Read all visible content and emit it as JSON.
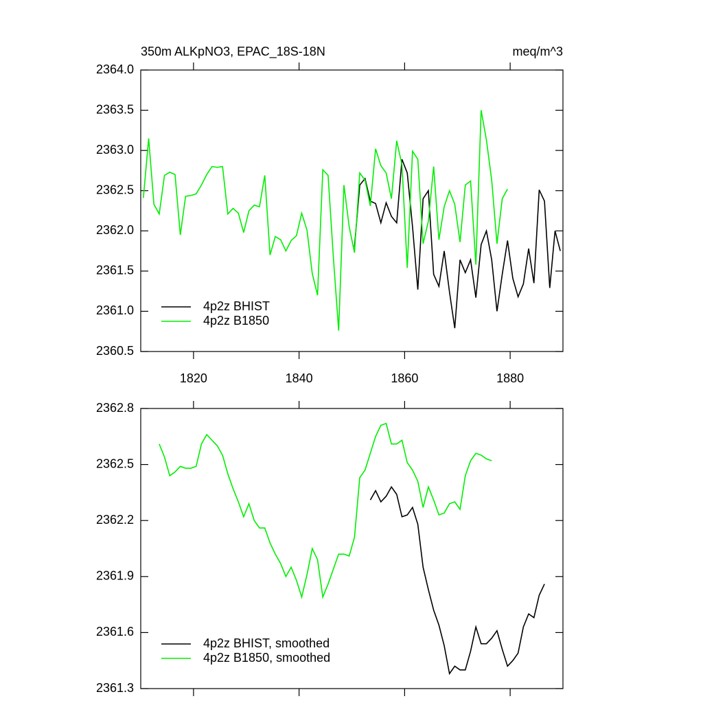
{
  "chart_data": [
    {
      "type": "line",
      "title": "350m ALKpNO3, EPAC_18S-18N",
      "units": "meq/m^3",
      "xlim": [
        1810,
        1890
      ],
      "xticks": [
        1820,
        1840,
        1860,
        1880
      ],
      "ylim": [
        2360.5,
        2364.0
      ],
      "yticks": [
        {
          "value": 2360.5,
          "label": "2360.5"
        },
        {
          "value": 2361.0,
          "label": "2361.0"
        },
        {
          "value": 2361.5,
          "label": "2361.5"
        },
        {
          "value": 2362.0,
          "label": "2362.0"
        },
        {
          "value": 2362.5,
          "label": "2362.5"
        },
        {
          "value": 2363.0,
          "label": "2363.0"
        },
        {
          "value": 2363.5,
          "label": "2363.5"
        },
        {
          "value": 2364.0,
          "label": "2364.0"
        }
      ],
      "legend": "lower left",
      "series": [
        {
          "name": "4p2z BHIST",
          "color": "#000000",
          "x": [
            1850.5,
            1851.5,
            1852.5,
            1853.5,
            1854.5,
            1855.5,
            1856.5,
            1857.5,
            1858.5,
            1859.5,
            1860.5,
            1861.5,
            1862.5,
            1863.5,
            1864.5,
            1865.5,
            1866.5,
            1867.5,
            1868.5,
            1869.5,
            1870.5,
            1871.5,
            1872.5,
            1873.5,
            1874.5,
            1875.5,
            1876.5,
            1877.5,
            1878.5,
            1879.5,
            1880.5,
            1881.5,
            1882.5,
            1883.5,
            1884.5,
            1885.5,
            1886.5,
            1887.5,
            1888.5,
            1889.5
          ],
          "values": [
            2361.8,
            2362.57,
            2362.65,
            2362.37,
            2362.34,
            2362.1,
            2362.35,
            2362.18,
            2362.1,
            2362.89,
            2362.72,
            2362.05,
            2361.27,
            2362.4,
            2362.5,
            2361.46,
            2361.31,
            2361.75,
            2361.24,
            2360.79,
            2361.64,
            2361.48,
            2361.64,
            2361.17,
            2361.83,
            2362.0,
            2361.64,
            2361.0,
            2361.46,
            2361.88,
            2361.41,
            2361.18,
            2361.34,
            2361.78,
            2361.35,
            2362.51,
            2362.37,
            2361.29,
            2362.0,
            2361.75
          ]
        },
        {
          "name": "4p2z B1850",
          "color": "#00ee00",
          "x": [
            1810.5,
            1811.5,
            1812.5,
            1813.5,
            1814.5,
            1815.5,
            1816.5,
            1817.5,
            1818.5,
            1819.5,
            1820.5,
            1821.5,
            1822.5,
            1823.5,
            1824.5,
            1825.5,
            1826.5,
            1827.5,
            1828.5,
            1829.5,
            1830.5,
            1831.5,
            1832.5,
            1833.5,
            1834.5,
            1835.5,
            1836.5,
            1837.5,
            1838.5,
            1839.5,
            1840.5,
            1841.5,
            1842.5,
            1843.5,
            1844.5,
            1845.5,
            1846.5,
            1847.5,
            1848.5,
            1849.5,
            1850.5,
            1851.5,
            1852.5,
            1853.5,
            1854.5,
            1855.5,
            1856.5,
            1857.5,
            1858.5,
            1859.5,
            1860.5,
            1861.5,
            1862.5,
            1863.5,
            1864.5,
            1865.5,
            1866.5,
            1867.5,
            1868.5,
            1869.5,
            1870.5,
            1871.5,
            1872.5,
            1873.5,
            1874.5,
            1875.5,
            1876.5,
            1877.5,
            1878.5,
            1879.5
          ],
          "values": [
            2362.41,
            2363.15,
            2362.33,
            2362.21,
            2362.69,
            2362.73,
            2362.7,
            2361.95,
            2362.43,
            2362.44,
            2362.46,
            2362.57,
            2362.7,
            2362.8,
            2362.79,
            2362.8,
            2362.21,
            2362.28,
            2362.22,
            2361.98,
            2362.25,
            2362.32,
            2362.3,
            2362.69,
            2361.7,
            2361.93,
            2361.89,
            2361.75,
            2361.88,
            2361.94,
            2362.22,
            2362.01,
            2361.47,
            2361.2,
            2362.76,
            2362.69,
            2361.67,
            2360.76,
            2362.57,
            2362.05,
            2361.73,
            2362.72,
            2362.63,
            2362.31,
            2363.02,
            2362.81,
            2362.72,
            2362.4,
            2363.12,
            2362.82,
            2361.54,
            2362.99,
            2362.89,
            2361.84,
            2362.12,
            2362.8,
            2361.89,
            2362.3,
            2362.5,
            2362.33,
            2361.86,
            2362.57,
            2362.62,
            2361.58,
            2363.5,
            2363.13,
            2362.63,
            2361.84,
            2362.4,
            2362.52
          ]
        }
      ]
    },
    {
      "type": "line",
      "xlim": [
        1810,
        1890
      ],
      "xticks": [
        1820,
        1840,
        1860,
        1880
      ],
      "ylim": [
        2361.3,
        2362.8
      ],
      "yticks": [
        {
          "value": 2361.3,
          "label": "2361.3"
        },
        {
          "value": 2361.6,
          "label": "2361.6"
        },
        {
          "value": 2361.9,
          "label": "2361.9"
        },
        {
          "value": 2362.2,
          "label": "2362.2"
        },
        {
          "value": 2362.5,
          "label": "2362.5"
        },
        {
          "value": 2362.8,
          "label": "2362.8"
        }
      ],
      "legend": "lower left",
      "series": [
        {
          "name": "4p2z BHIST, smoothed",
          "color": "#000000",
          "x": [
            1853.5,
            1854.5,
            1855.5,
            1856.5,
            1857.5,
            1858.5,
            1859.5,
            1860.5,
            1861.5,
            1862.5,
            1863.5,
            1864.5,
            1865.5,
            1866.5,
            1867.5,
            1868.5,
            1869.5,
            1870.5,
            1871.5,
            1872.5,
            1873.5,
            1874.5,
            1875.5,
            1876.5,
            1877.5,
            1878.5,
            1879.5,
            1880.5,
            1881.5,
            1882.5,
            1883.5,
            1884.5,
            1885.5,
            1886.5
          ],
          "values": [
            2362.31,
            2362.36,
            2362.3,
            2362.33,
            2362.38,
            2362.34,
            2362.22,
            2362.23,
            2362.27,
            2362.18,
            2361.95,
            2361.83,
            2361.72,
            2361.64,
            2361.53,
            2361.38,
            2361.42,
            2361.4,
            2361.4,
            2361.5,
            2361.63,
            2361.54,
            2361.54,
            2361.57,
            2361.61,
            2361.51,
            2361.42,
            2361.45,
            2361.49,
            2361.63,
            2361.7,
            2361.68,
            2361.8,
            2361.86
          ]
        },
        {
          "name": "4p2z B1850, smoothed",
          "color": "#00ee00",
          "x": [
            1813.5,
            1814.5,
            1815.5,
            1816.5,
            1817.5,
            1818.5,
            1819.5,
            1820.5,
            1821.5,
            1822.5,
            1823.5,
            1824.5,
            1825.5,
            1826.5,
            1827.5,
            1828.5,
            1829.5,
            1830.5,
            1831.5,
            1832.5,
            1833.5,
            1834.5,
            1835.5,
            1836.5,
            1837.5,
            1838.5,
            1839.5,
            1840.5,
            1841.5,
            1842.5,
            1843.5,
            1844.5,
            1845.5,
            1846.5,
            1847.5,
            1848.5,
            1849.5,
            1850.5,
            1851.5,
            1852.5,
            1853.5,
            1854.5,
            1855.5,
            1856.5,
            1857.5,
            1858.5,
            1859.5,
            1860.5,
            1861.5,
            1862.5,
            1863.5,
            1864.5,
            1865.5,
            1866.5,
            1867.5,
            1868.5,
            1869.5,
            1870.5,
            1871.5,
            1872.5,
            1873.5,
            1874.5,
            1875.5,
            1876.5
          ],
          "values": [
            2362.61,
            2362.54,
            2362.44,
            2362.46,
            2362.49,
            2362.48,
            2362.48,
            2362.49,
            2362.61,
            2362.66,
            2362.63,
            2362.6,
            2362.55,
            2362.45,
            2362.37,
            2362.3,
            2362.22,
            2362.29,
            2362.2,
            2362.16,
            2362.16,
            2362.08,
            2362.02,
            2361.97,
            2361.9,
            2361.95,
            2361.88,
            2361.79,
            2361.91,
            2362.05,
            2361.99,
            2361.79,
            2361.86,
            2361.94,
            2362.02,
            2362.02,
            2362.01,
            2362.11,
            2362.43,
            2362.47,
            2362.56,
            2362.65,
            2362.71,
            2362.72,
            2362.61,
            2362.61,
            2362.63,
            2362.51,
            2362.47,
            2362.41,
            2362.27,
            2362.38,
            2362.31,
            2362.23,
            2362.24,
            2362.29,
            2362.3,
            2362.26,
            2362.44,
            2362.52,
            2362.56,
            2362.55,
            2362.53,
            2362.52
          ]
        }
      ]
    }
  ]
}
